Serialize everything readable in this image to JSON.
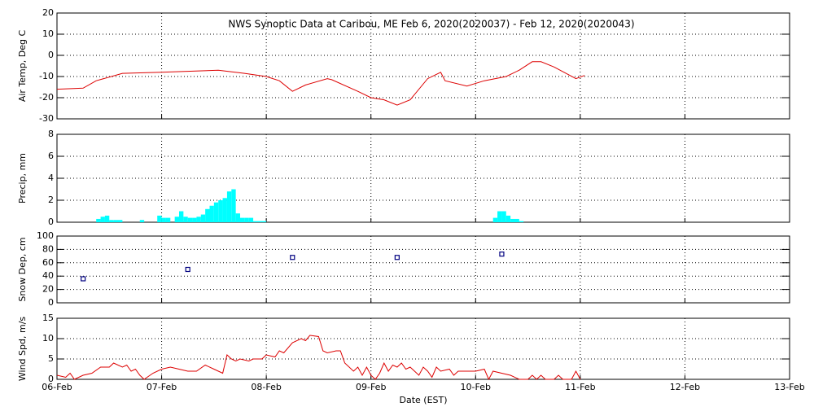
{
  "chart_data": [
    {
      "type": "line",
      "title": "NWS Synoptic Data at Caribou, ME   Feb  6, 2020(2020037) - Feb 12, 2020(2020043)",
      "ylabel": "Air Temp, Deg C",
      "color": "#dd0000",
      "grid": true,
      "xlim": [
        0,
        168
      ],
      "xticks": [
        0,
        24,
        48,
        72,
        96,
        120,
        144,
        168
      ],
      "ylim": [
        -30,
        20
      ],
      "yticks": [
        -30,
        -20,
        -10,
        0,
        10,
        20
      ],
      "x": [
        0,
        6,
        9,
        15,
        24,
        37,
        43,
        48,
        51,
        54,
        57,
        62,
        63,
        69,
        72,
        75,
        78,
        81,
        85,
        88,
        89,
        94,
        98,
        103,
        106,
        109,
        111,
        114,
        119,
        121
      ],
      "values": [
        -16,
        -15.5,
        -12,
        -8.5,
        -8,
        -7,
        -8.5,
        -10,
        -12,
        -17,
        -14,
        -11,
        -11.5,
        -17,
        -20,
        -21,
        -23.5,
        -21,
        -11,
        -8,
        -12,
        -14.5,
        -12,
        -10,
        -7,
        -3,
        -3,
        -5.5,
        -11,
        -9.5
      ]
    },
    {
      "type": "bar",
      "ylabel": "Precip, mm",
      "color": "#00ffff",
      "grid": true,
      "xlim": [
        0,
        168
      ],
      "xticks": [
        0,
        24,
        48,
        72,
        96,
        120,
        144,
        168
      ],
      "ylim": [
        0,
        8
      ],
      "yticks": [
        0,
        2,
        4,
        6,
        8
      ],
      "x": [
        9,
        10,
        11,
        12,
        13,
        14,
        19,
        23,
        24,
        25,
        27,
        28,
        29,
        30,
        31,
        32,
        33,
        34,
        35,
        36,
        37,
        38,
        39,
        40,
        41,
        42,
        43,
        44,
        45,
        46,
        47,
        100,
        101,
        102,
        103,
        104,
        105,
        106
      ],
      "values": [
        0.3,
        0.5,
        0.6,
        0.2,
        0.2,
        0.2,
        0.2,
        0.6,
        0.4,
        0.4,
        0.5,
        1.0,
        0.5,
        0.4,
        0.4,
        0.5,
        0.7,
        1.2,
        1.5,
        1.8,
        2.0,
        2.2,
        2.8,
        3.0,
        0.8,
        0.4,
        0.4,
        0.4,
        0.1,
        0.1,
        0.1,
        0.4,
        1.0,
        1.0,
        0.6,
        0.3,
        0.3,
        0.1
      ]
    },
    {
      "type": "scatter",
      "ylabel": "Snow Dep, cm",
      "color": "#000080",
      "grid": true,
      "xlim": [
        0,
        168
      ],
      "xticks": [
        0,
        24,
        48,
        72,
        96,
        120,
        144,
        168
      ],
      "ylim": [
        0,
        100
      ],
      "yticks": [
        0,
        20,
        40,
        60,
        80,
        100
      ],
      "x": [
        6,
        30,
        54,
        78,
        102
      ],
      "values": [
        36,
        50,
        68,
        68,
        73
      ]
    },
    {
      "type": "line",
      "ylabel": "Wind Spd, m/s",
      "xlabel": "Date (EST)",
      "color": "#dd0000",
      "grid": true,
      "xlim": [
        0,
        168
      ],
      "xticks": [
        {
          "value": 0,
          "label": "06-Feb"
        },
        {
          "value": 24,
          "label": "07-Feb"
        },
        {
          "value": 48,
          "label": "08-Feb"
        },
        {
          "value": 72,
          "label": "09-Feb"
        },
        {
          "value": 96,
          "label": "10-Feb"
        },
        {
          "value": 120,
          "label": "11-Feb"
        },
        {
          "value": 144,
          "label": "12-Feb"
        },
        {
          "value": 168,
          "label": "13-Feb"
        }
      ],
      "ylim": [
        0,
        15
      ],
      "yticks": [
        0,
        5,
        10,
        15
      ],
      "x": [
        0,
        2,
        3,
        4,
        6,
        8,
        10,
        12,
        13,
        15,
        16,
        17,
        18,
        19,
        20,
        22,
        24,
        26,
        28,
        30,
        32,
        34,
        36,
        38,
        39,
        40,
        41,
        42,
        44,
        45,
        47,
        48,
        50,
        51,
        52,
        54,
        56,
        57,
        58,
        60,
        61,
        62,
        64,
        65,
        66,
        68,
        69,
        70,
        71,
        72,
        73,
        74,
        75,
        76,
        77,
        78,
        79,
        80,
        81,
        82,
        83,
        84,
        85,
        86,
        87,
        88,
        90,
        91,
        92,
        94,
        96,
        98,
        99,
        100,
        102,
        104,
        106,
        108,
        109,
        110,
        111,
        112,
        114,
        115,
        116,
        118,
        119,
        120
      ],
      "values": [
        1,
        0.5,
        1.5,
        0,
        1,
        1.5,
        3,
        3,
        4,
        3,
        3.5,
        2,
        2.5,
        1,
        0,
        1.5,
        2.5,
        3,
        2.5,
        2,
        2,
        3.5,
        2.5,
        1.5,
        6,
        5,
        4.5,
        5,
        4.5,
        5,
        5,
        6,
        5.5,
        7,
        6.5,
        9,
        10,
        9.5,
        10.8,
        10.5,
        7,
        6.5,
        7,
        7,
        4,
        2,
        3,
        1,
        3,
        1,
        0,
        1.5,
        4,
        2,
        3.5,
        3,
        4,
        2.5,
        3,
        2,
        1,
        3,
        2,
        0.5,
        3,
        2,
        2.5,
        1,
        2,
        2,
        2,
        2.5,
        0,
        2,
        1.5,
        1,
        0,
        0,
        1,
        0,
        1,
        0,
        0,
        1,
        0,
        0,
        2,
        0
      ]
    }
  ]
}
